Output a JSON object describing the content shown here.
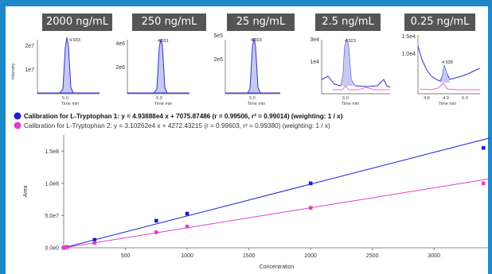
{
  "insets": [
    {
      "label": "2000 ng/mL",
      "yticks": [
        "2e7",
        "1e7"
      ],
      "peak_label": "4.933",
      "xtick": "5.0",
      "xlabel": "Time min",
      "ylabel": "Intensity"
    },
    {
      "label": "250 ng/mL",
      "yticks": [
        "4e6",
        "2e6"
      ],
      "peak_label": "4.931",
      "xtick": "5.0",
      "xlabel": "Time min"
    },
    {
      "label": "25 ng/mL",
      "yticks": [
        "5e5",
        "2e5"
      ],
      "peak_label": "4.923",
      "xtick": "5.0",
      "xlabel": "Time min"
    },
    {
      "label": "2.5 ng/mL",
      "yticks": [
        "3e4",
        "1e4"
      ],
      "peak_label": "4.923",
      "xtick": "5.0",
      "xlabel": "Time min"
    },
    {
      "label": "0.25 ng/mL",
      "yticks": [
        "1.5e4",
        "1.0e4"
      ],
      "peak_label": "4.928",
      "xticks": [
        "4.8",
        "4.9",
        "5.0"
      ],
      "xlabel": "Time min"
    }
  ],
  "legend": [
    {
      "text": "Calibration for L-Tryptophan 1: y = 4.93888e4 x + 7075.87486 (r = 0.99506, r² = 0.99014)  (weighting: 1 / x)",
      "color": "#1b1bd4"
    },
    {
      "text": "Calibration for L-Tryptophan 2: y = 3.10262e4 x + 4272.43215 (r = 0.99603, r² = 0.99380)  (weighting: 1 / x)",
      "color": "#e33fc8"
    }
  ],
  "chart_data": {
    "type": "scatter",
    "xlabel": "Concentration",
    "ylabel": "Area",
    "xlim": [
      0,
      3450
    ],
    "ylim": [
      0,
      175000000.0
    ],
    "xticks": [
      500,
      1000,
      1500,
      2000,
      2500,
      3000
    ],
    "yticks": [
      {
        "value": 0,
        "label": "0.0e0"
      },
      {
        "value": 50000000,
        "label": "5.0e7"
      },
      {
        "value": 100000000,
        "label": "1.0e8"
      },
      {
        "value": 150000000,
        "label": "1.5e8"
      }
    ],
    "grid": false,
    "series": [
      {
        "name": "Calibration for L-Tryptophan 1",
        "color": "#1b1bd4",
        "slope": 49388.8,
        "intercept": 7075.87486,
        "x": [
          0.25,
          2.5,
          25,
          250,
          750,
          1000,
          2000,
          3400
        ],
        "y": [
          20000,
          130000,
          1250000,
          12500000,
          42000000,
          53000000,
          100000000,
          155000000
        ]
      },
      {
        "name": "Calibration for L-Tryptophan 2",
        "color": "#e33fc8",
        "slope": 31026.2,
        "intercept": 4272.43215,
        "x": [
          0.25,
          2.5,
          25,
          250,
          750,
          1000,
          2000,
          3400
        ],
        "y": [
          10000,
          80000,
          780000,
          7800000,
          24000000,
          33000000,
          62000000,
          100000000
        ]
      }
    ]
  }
}
